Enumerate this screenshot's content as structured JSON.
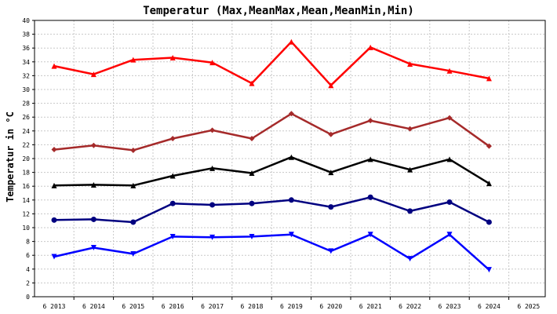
{
  "chart_data": {
    "type": "line",
    "title": "Temperatur (Max,MeanMax,Mean,MeanMin,Min)",
    "ylabel": "Temperatur in °C",
    "xlabel": "",
    "ylim": [
      0,
      40
    ],
    "yticks": [
      0,
      2,
      4,
      6,
      8,
      10,
      12,
      14,
      16,
      18,
      20,
      22,
      24,
      26,
      28,
      30,
      32,
      34,
      36,
      38,
      40
    ],
    "categories": [
      "6 2013",
      "6 2014",
      "6 2015",
      "6 2016",
      "6 2017",
      "6 2018",
      "6 2019",
      "6 2020",
      "6 2021",
      "6 2022",
      "6 2023",
      "6 2024",
      "6 2025"
    ],
    "grid": true,
    "series": [
      {
        "key": "max",
        "color": "#ff0000",
        "marker": "triangle",
        "values": [
          33.4,
          32.2,
          34.3,
          34.6,
          33.9,
          30.9,
          36.9,
          30.6,
          36.1,
          33.7,
          32.7,
          31.6,
          null
        ]
      },
      {
        "key": "meanmax",
        "color": "#a52a2a",
        "marker": "diamond",
        "values": [
          21.3,
          21.9,
          21.2,
          22.9,
          24.1,
          22.9,
          26.5,
          23.5,
          25.5,
          24.3,
          25.9,
          21.8,
          null
        ]
      },
      {
        "key": "mean",
        "color": "#000000",
        "marker": "triangle",
        "values": [
          16.1,
          16.2,
          16.1,
          17.5,
          18.6,
          17.9,
          20.2,
          18.0,
          19.9,
          18.4,
          19.9,
          16.4,
          null
        ]
      },
      {
        "key": "meanmin",
        "color": "#000080",
        "marker": "circle",
        "values": [
          11.1,
          11.2,
          10.8,
          13.5,
          13.3,
          13.5,
          14.0,
          13.0,
          14.4,
          12.4,
          13.7,
          10.8,
          null
        ]
      },
      {
        "key": "min",
        "color": "#0000ff",
        "marker": "triangle-down",
        "values": [
          5.8,
          7.1,
          6.2,
          8.7,
          8.6,
          8.7,
          9.0,
          6.6,
          9.0,
          5.5,
          9.0,
          3.9,
          null
        ]
      }
    ]
  }
}
